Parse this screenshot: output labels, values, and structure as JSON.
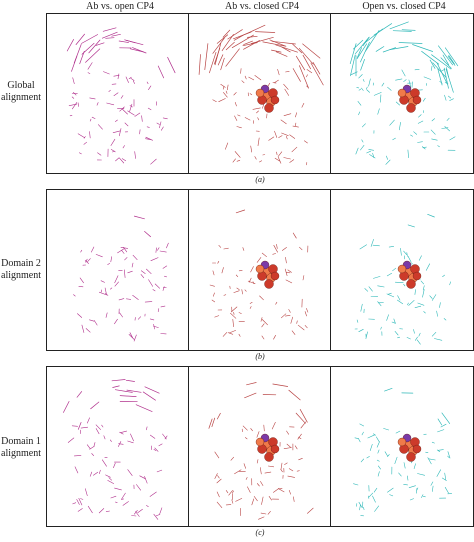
{
  "figure": {
    "columns": [
      {
        "label": "Ab vs. open CP4",
        "color": "#b0308c"
      },
      {
        "label": "Ab vs. closed CP4",
        "color": "#b84444"
      },
      {
        "label": "Open vs. closed CP4",
        "color": "#2fb8b8"
      }
    ],
    "rows": [
      {
        "label_line1": "Global",
        "label_line2": "alignment",
        "caption": "(a)"
      },
      {
        "label_line1": "Domain 2",
        "label_line2": "alignment",
        "caption": "(b)"
      },
      {
        "label_line1": "Domain 1",
        "label_line2": "alignment",
        "caption": "(c)"
      }
    ],
    "ligand_colors": {
      "sphere_main": "#cc3a2a",
      "sphere_accent": "#7a3aa8",
      "sphere_highlight": "#f07a4a"
    }
  }
}
